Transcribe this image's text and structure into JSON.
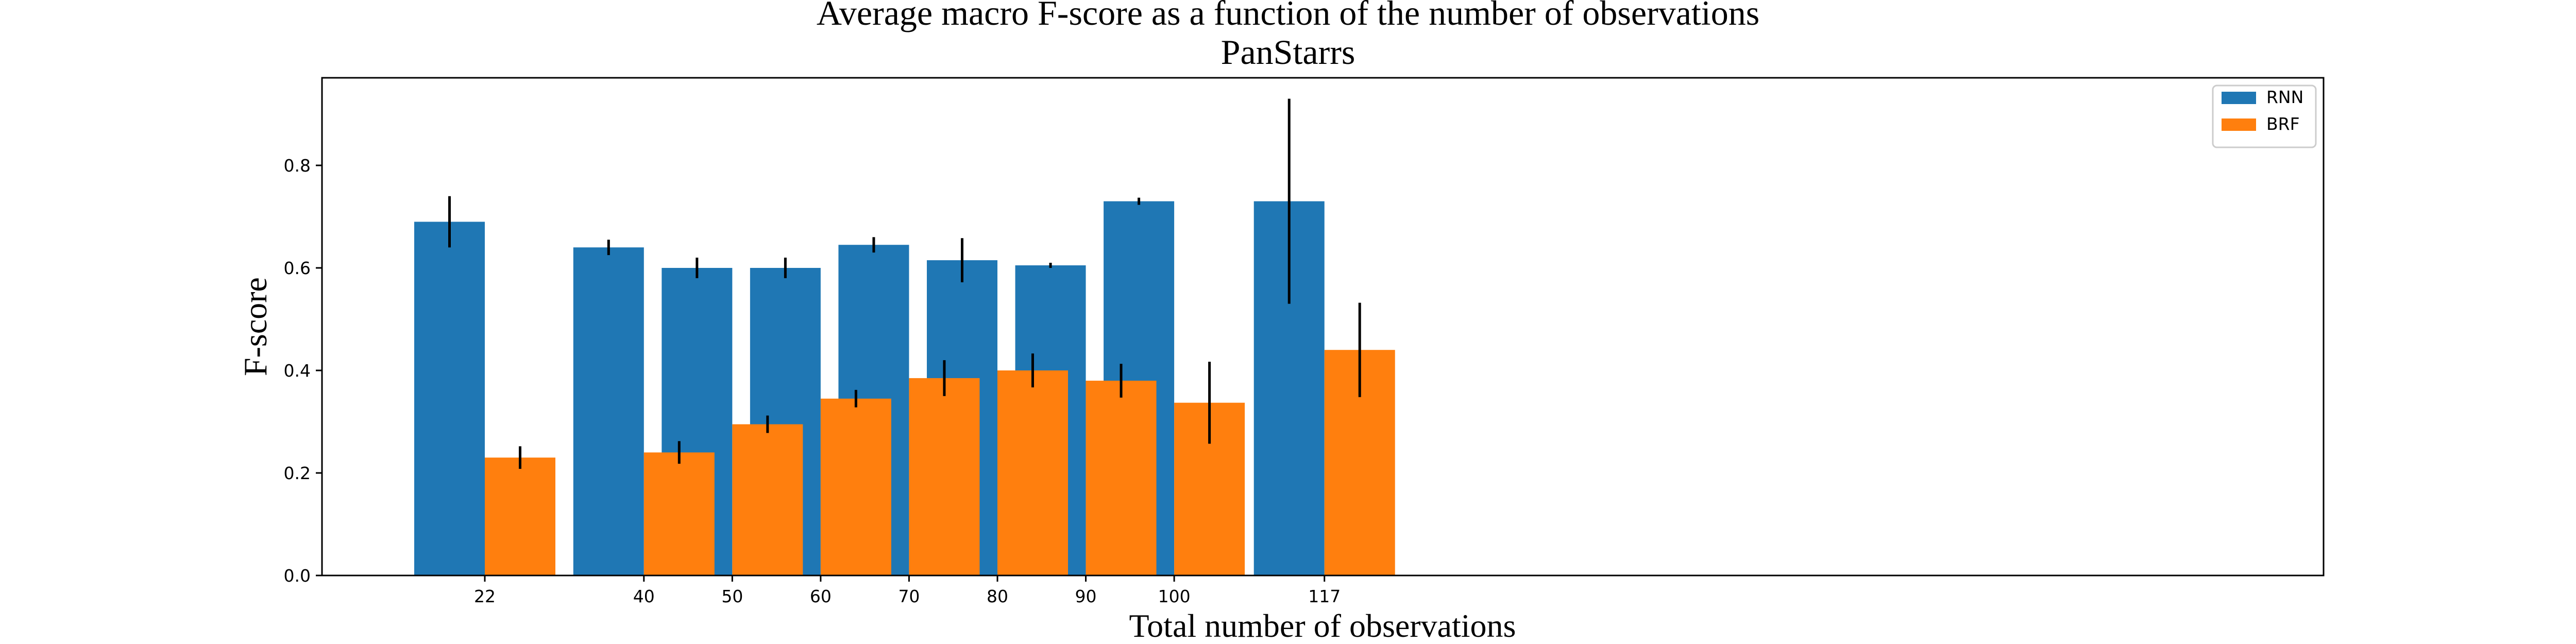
{
  "chart_data": {
    "type": "bar",
    "title": "Average macro F-score as a function of the number of observations",
    "subtitle": "PanStarrs",
    "xlabel": "Total number of observations",
    "ylabel": "F-score",
    "ylim": [
      0,
      0.97
    ],
    "yticks": [
      "0.0",
      "0.2",
      "0.4",
      "0.6",
      "0.8"
    ],
    "x": [
      22,
      40,
      50,
      60,
      70,
      80,
      90,
      100,
      117
    ],
    "categories": [
      "22",
      "40",
      "50",
      "60",
      "70",
      "80",
      "90",
      "100",
      "117"
    ],
    "grid": false,
    "legend_position": "top-right",
    "series": [
      {
        "name": "RNN",
        "color": "#1f77b4",
        "values": [
          0.69,
          0.64,
          0.6,
          0.6,
          0.645,
          0.615,
          0.605,
          0.73,
          0.73
        ],
        "errors": [
          0.05,
          0.015,
          0.02,
          0.02,
          0.015,
          0.043,
          0.005,
          0.007,
          0.2
        ]
      },
      {
        "name": "BRF",
        "color": "#ff7f0e",
        "values": [
          0.23,
          0.24,
          0.295,
          0.345,
          0.385,
          0.4,
          0.38,
          0.337,
          0.44
        ],
        "errors": [
          0.022,
          0.022,
          0.017,
          0.017,
          0.035,
          0.033,
          0.033,
          0.08,
          0.092
        ]
      }
    ]
  }
}
